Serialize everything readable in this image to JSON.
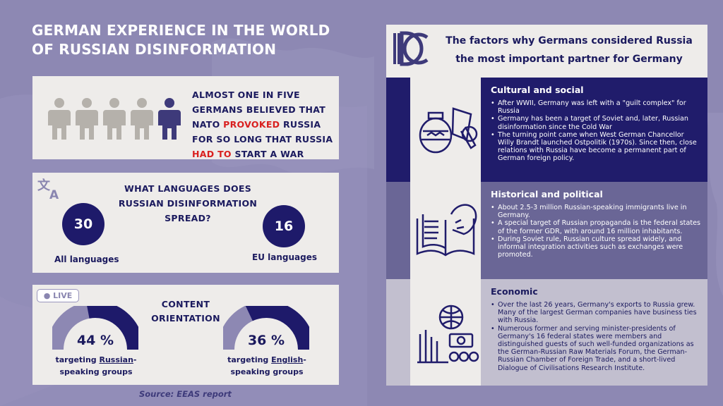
{
  "title": "GERMAN EXPERIENCE IN THE WORLD OF RUSSIAN DISINFORMATION",
  "stat": {
    "part1": "ALMOST ONE IN FIVE GERMANS BELIEVED THAT NATO ",
    "highlight1": "PROVOKED",
    "part2": " RUSSIA FOR SO LONG THAT RUSSIA ",
    "highlight2": "HAD TO",
    "part3": " START A WAR",
    "people_total": 5,
    "people_highlighted": 1
  },
  "languages": {
    "title": "WHAT LANGUAGES DOES RUSSIAN DISINFORMATION SPREAD?",
    "all_value": "30",
    "all_label": "All languages",
    "eu_value": "16",
    "eu_label": "EU languages"
  },
  "content": {
    "badge": "LIVE",
    "title": "CONTENT ORIENTATION",
    "gauge1": {
      "value": "44 %",
      "fraction": 0.44,
      "label_pre": "targeting ",
      "label_u": "Russian",
      "label_post": "-speaking groups"
    },
    "gauge2": {
      "value": "36 %",
      "fraction": 0.36,
      "label_pre": "targeting ",
      "label_u": "English",
      "label_post": "-speaking groups"
    }
  },
  "source": "Source: EEAS report",
  "right": {
    "title": "The factors why Germans considered Russia the most important partner for Germany",
    "sections": [
      {
        "heading": "Cultural and social",
        "bullets": [
          "After WWII, Germany was left with a \"guilt complex\" for Russia",
          "Germany has been a target of Soviet and, later, Russian disinformation since the Cold War",
          "The turning point came when West German Chancellor Willy Brandt launched Ostpolitik (1970s). Since then, close relations with Russia have become a permanent part of German foreign policy."
        ]
      },
      {
        "heading": "Historical and political",
        "bullets": [
          "About 2.5-3 million Russian-speaking immigrants live in Germany.",
          "A special target of Russian propaganda is the federal states of the former GDR, with around 16 million inhabitants.",
          "During Soviet rule, Russian culture spread widely, and informal integration activities such as exchanges were promoted."
        ]
      },
      {
        "heading": "Economic",
        "bullets": [
          "Over the last 26 years, Germany's exports to Russia grew. Many of the largest German companies have business ties with Russia.",
          "Numerous former and serving minister-presidents of Germany's 16 federal states were members and distinguished guests of such well-funded organizations as the German-Russian Raw Materials Forum, the German-Russian Chamber of Foreign Trade, and a short-lived Dialogue of Civilisations Research Institute."
        ]
      }
    ]
  },
  "colors": {
    "navy": "#1e1a6a",
    "red": "#d9201f",
    "gray_person": "#b5b1ab",
    "bg": "#8d88b3"
  }
}
